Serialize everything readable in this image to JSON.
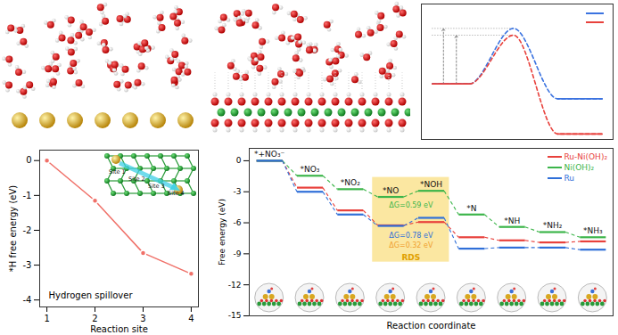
{
  "chart_data": [
    {
      "type": "line",
      "tick_labels": false,
      "legend": "top-right",
      "x": [
        0,
        1,
        2.2,
        3.4,
        4.6
      ],
      "xlim": [
        -0.3,
        4.9
      ],
      "ylim": [
        0,
        10
      ],
      "series": [
        {
          "color": "#3b73e0",
          "line_style": "dashed",
          "values": [
            4.1,
            4.1,
            8.2,
            3.0,
            3.0
          ]
        },
        {
          "color": "#e8413c",
          "line_style": "dashed",
          "values": [
            4.1,
            4.1,
            7.7,
            0.4,
            0.4
          ]
        }
      ]
    },
    {
      "type": "line",
      "x": [
        1,
        2,
        3,
        4
      ],
      "values": [
        0,
        -1.15,
        -2.65,
        -3.25
      ],
      "color": "#f07068",
      "marker": "circle",
      "xlim": [
        0.85,
        4.15
      ],
      "ylim": [
        -4.2,
        0.3
      ],
      "xticks": [
        1,
        2,
        3,
        4
      ],
      "yticks": [
        0,
        -1,
        -2,
        -3,
        -4
      ],
      "xlabel": "Reaction site",
      "ylabel": "*H free energy (eV)",
      "annotations": [
        {
          "text": "Hydrogen spillover"
        }
      ],
      "inset_labels": [
        "Site 1",
        "Site 2",
        "Site 3",
        "Site 4"
      ]
    },
    {
      "type": "energy_levels",
      "line_style": "dashed",
      "tick_labels": "y",
      "legend": "top-right",
      "categories": [
        "*+NO₃⁻",
        "*NO₃",
        "*NO₂",
        "*NO",
        "*NOH",
        "*N",
        "*NH",
        "*NH₂",
        "*NH₃"
      ],
      "series": [
        {
          "name": "Ru-Ni(OH)₂",
          "color": "#e8413c",
          "values": [
            0,
            -2.6,
            -4.8,
            -6.25,
            -5.93,
            -7.4,
            -7.7,
            -7.9,
            -7.8
          ]
        },
        {
          "name": "Ni(OH)₂",
          "color": "#3cb54a",
          "values": [
            0,
            -1.45,
            -2.75,
            -3.5,
            -2.91,
            -5.2,
            -6.4,
            -6.9,
            -7.4
          ]
        },
        {
          "name": "Ru",
          "color": "#2f6fd8",
          "values": [
            0,
            -3.0,
            -5.2,
            -6.3,
            -5.52,
            -8.5,
            -8.4,
            -8.4,
            -8.6
          ]
        }
      ],
      "ylim": [
        -15,
        1.2
      ],
      "yticks": [
        0,
        -3,
        -6,
        -9,
        -12,
        -15
      ],
      "xlabel": "Reaction coordinate",
      "ylabel": "Free energy (eV)",
      "highlight": {
        "label": "RDS",
        "from": "*NO",
        "to": "*NOH",
        "color": "#fbe7a1"
      },
      "annotations": [
        {
          "text": "ΔG=0.59 eV",
          "color": "#3cb54a",
          "series": "Ni(OH)₂"
        },
        {
          "text": "ΔG=0.78 eV",
          "color": "#2f6fd8",
          "series": "Ru"
        },
        {
          "text": "ΔG=0.32 eV",
          "color": "#f0a030",
          "series": "Ru-Ni(OH)₂"
        }
      ]
    }
  ]
}
